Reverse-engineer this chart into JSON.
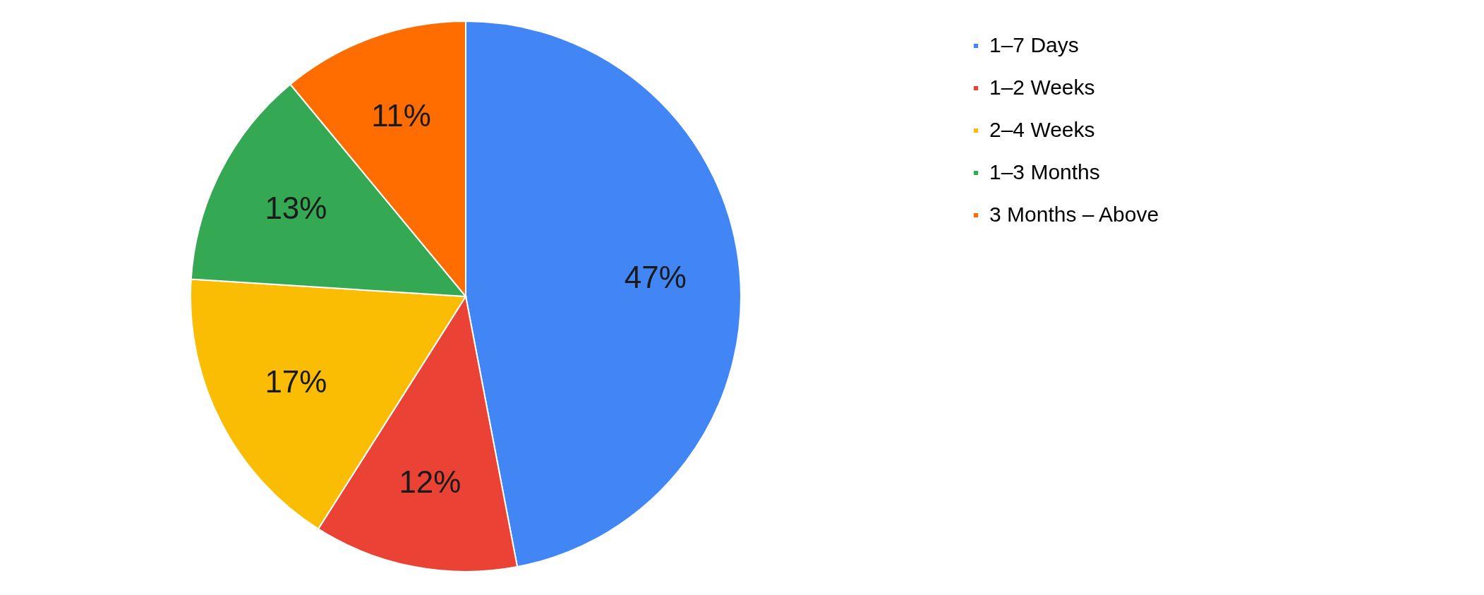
{
  "chart_data": {
    "type": "pie",
    "categories": [
      "1–7 Days",
      "1–2 Weeks",
      "2–4 Weeks",
      "1–3 Months",
      "3 Months – Above"
    ],
    "values": [
      47,
      12,
      17,
      13,
      11
    ],
    "colors": [
      "#4285f4",
      "#ea4335",
      "#fbbc04",
      "#34a853",
      "#ff6d01"
    ],
    "value_labels": [
      "47%",
      "12%",
      "17%",
      "13%",
      "11%"
    ],
    "legend": "right"
  }
}
